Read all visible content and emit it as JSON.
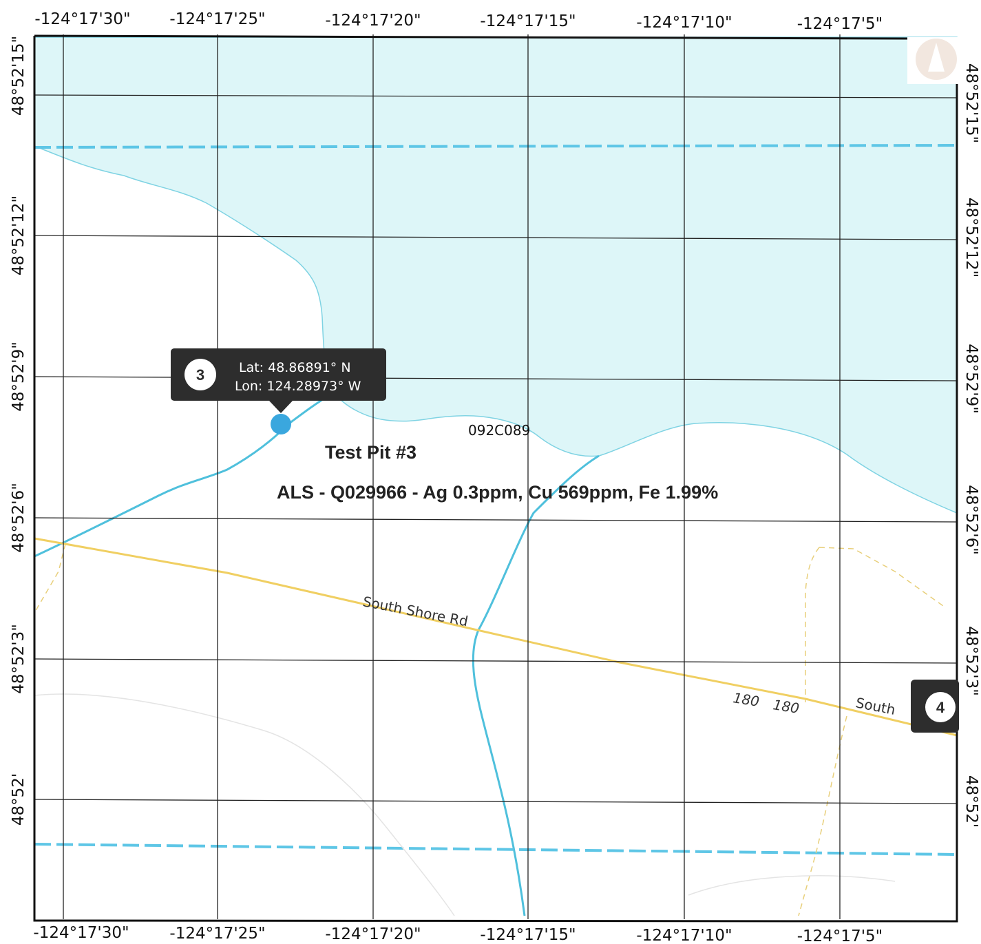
{
  "map": {
    "top_axis_labels": [
      "-124°17'30\"",
      "-124°17'25\"",
      "-124°17'20\"",
      "-124°17'15\"",
      "-124°17'10\"",
      "-124°17'5\""
    ],
    "bottom_axis_labels": [
      "-124°17'30\"",
      "-124°17'25\"",
      "-124°17'20\"",
      "-124°17'15\"",
      "-124°17'10\"",
      "-124°17'5\""
    ],
    "left_axis_labels": [
      "48°52'15\"",
      "48°52'12\"",
      "48°52'9\"",
      "48°52'6\"",
      "48°52'3\"",
      "48°52'"
    ],
    "right_axis_labels": [
      "48°52'15\"",
      "48°52'12\"",
      "48°52'9\"",
      "48°52'6\"",
      "48°52'3\"",
      "48°52'"
    ],
    "tooltip": {
      "marker_number": "3",
      "lat": "Lat: 48.86891° N",
      "lon": "Lon: 124.28973° W"
    },
    "site_code": "092C089",
    "site_name": "Test Pit #3",
    "assay": "ALS - Q029966 - Ag 0.3ppm, Cu 569ppm, Fe 1.99%",
    "road_label": "South Shore Rd",
    "road_label_2": "South",
    "highway_numbers": [
      "180",
      "180"
    ],
    "next_marker_number": "4",
    "colors": {
      "water": "#ddf6f8",
      "stream": "#4fc0dc",
      "boundary": "#5ec6e6",
      "road": "#f0cf62",
      "grid": "#222222",
      "marker": "#2d2d2d",
      "point": "#3aa7de"
    }
  }
}
